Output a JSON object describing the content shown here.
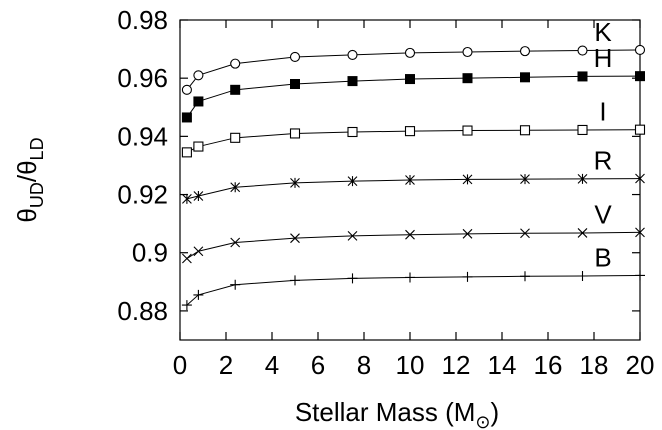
{
  "chart_data": {
    "type": "line",
    "xlabel": "Stellar Mass (M",
    "xlabel_sub": "⊙",
    "xlabel_close": ")",
    "ylabel_main": "θ",
    "ylabel_sub1": "UD",
    "ylabel_slash": "/θ",
    "ylabel_sub2": "LD",
    "xlim": [
      0,
      20
    ],
    "ylim": [
      0.87,
      0.98
    ],
    "xticks": [
      0,
      2,
      4,
      6,
      8,
      10,
      12,
      14,
      16,
      18,
      20
    ],
    "yticks": [
      0.88,
      0.9,
      0.92,
      0.94,
      0.96,
      0.98
    ],
    "ytick_labels": [
      "0.88",
      "0.9",
      "0.92",
      "0.94",
      "0.96",
      "0.98"
    ],
    "x": [
      0.3,
      0.8,
      2.4,
      5,
      7.5,
      10,
      12.5,
      15,
      17.5,
      20
    ],
    "series": [
      {
        "name": "K",
        "marker": "circle-open",
        "values": [
          0.956,
          0.961,
          0.965,
          0.9673,
          0.968,
          0.9687,
          0.969,
          0.9693,
          0.9695,
          0.9697
        ]
      },
      {
        "name": "H",
        "marker": "square-filled",
        "values": [
          0.9465,
          0.952,
          0.956,
          0.958,
          0.959,
          0.9597,
          0.96,
          0.9603,
          0.9606,
          0.9607
        ]
      },
      {
        "name": "I",
        "marker": "square-open",
        "values": [
          0.9345,
          0.9365,
          0.9395,
          0.941,
          0.9415,
          0.9418,
          0.942,
          0.9421,
          0.9422,
          0.9423
        ]
      },
      {
        "name": "R",
        "marker": "asterisk",
        "values": [
          0.9185,
          0.9195,
          0.9225,
          0.924,
          0.9246,
          0.925,
          0.9252,
          0.9253,
          0.9254,
          0.9255
        ]
      },
      {
        "name": "V",
        "marker": "x",
        "values": [
          0.898,
          0.9005,
          0.9035,
          0.905,
          0.9058,
          0.9062,
          0.9065,
          0.9067,
          0.9068,
          0.907
        ]
      },
      {
        "name": "B",
        "marker": "plus",
        "values": [
          0.882,
          0.8855,
          0.889,
          0.8905,
          0.8912,
          0.8915,
          0.8917,
          0.8919,
          0.892,
          0.8922
        ]
      }
    ],
    "legend": "labels at right end of each curve",
    "grid": false
  }
}
